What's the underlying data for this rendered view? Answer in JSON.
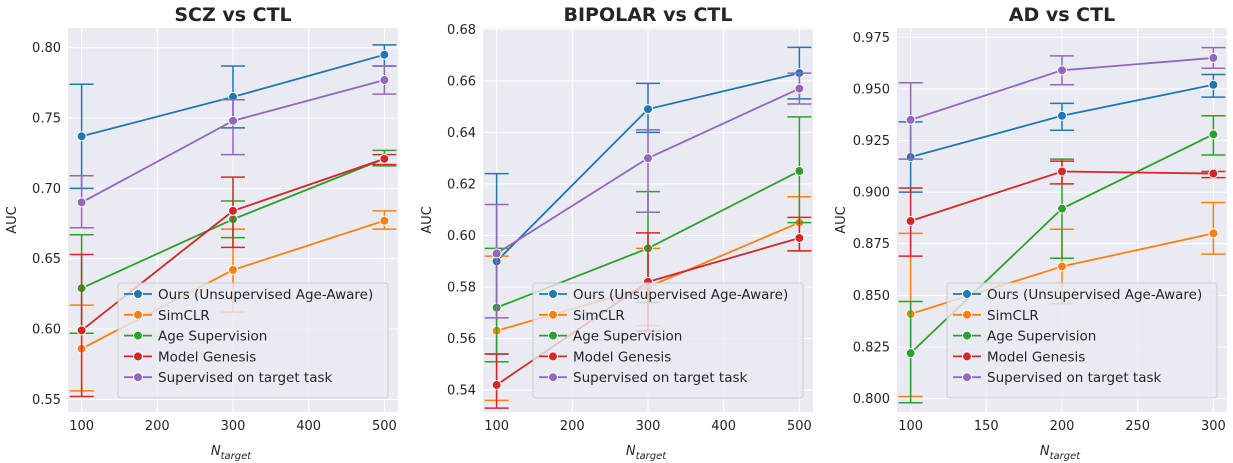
{
  "chart_data": [
    {
      "type": "line",
      "title": "SCZ vs CTL",
      "xlabel_main": "N",
      "xlabel_sub": "target",
      "ylabel": "AUC",
      "x": [
        100,
        300,
        500
      ],
      "xlim": [
        82,
        518
      ],
      "ylim": [
        0.541,
        0.814
      ],
      "xticks": [
        100,
        200,
        300,
        400,
        500
      ],
      "yticks": [
        0.55,
        0.6,
        0.65,
        0.7,
        0.75,
        0.8
      ],
      "ytick_decimals": 2,
      "xtick_labels": [
        "100",
        "200",
        "300",
        "400",
        "500"
      ],
      "ytick_labels": [
        "0.55",
        "0.60",
        "0.65",
        "0.70",
        "0.75",
        "0.80"
      ],
      "grid": true,
      "legend_position": "lower-right",
      "series": [
        {
          "name": "Ours (Unsupervised Age-Aware)",
          "color": "#1f77b4",
          "values": [
            0.737,
            0.765,
            0.795
          ],
          "err_low": [
            0.7,
            0.743,
            0.787
          ],
          "err_high": [
            0.774,
            0.787,
            0.802
          ]
        },
        {
          "name": "SimCLR",
          "color": "#ff7f0e",
          "values": [
            0.586,
            0.642,
            0.677
          ],
          "err_low": [
            0.556,
            0.612,
            0.671
          ],
          "err_high": [
            0.617,
            0.671,
            0.684
          ]
        },
        {
          "name": "Age Supervision",
          "color": "#2ca02c",
          "values": [
            0.629,
            0.678,
            0.721
          ],
          "err_low": [
            0.597,
            0.665,
            0.716
          ],
          "err_high": [
            0.667,
            0.691,
            0.727
          ]
        },
        {
          "name": "Model Genesis",
          "color": "#d62728",
          "values": [
            0.599,
            0.684,
            0.721
          ],
          "err_low": [
            0.552,
            0.658,
            0.717
          ],
          "err_high": [
            0.653,
            0.708,
            0.724
          ]
        },
        {
          "name": "Supervised on target task",
          "color": "#9467bd",
          "values": [
            0.69,
            0.748,
            0.777
          ],
          "err_low": [
            0.672,
            0.724,
            0.767
          ],
          "err_high": [
            0.709,
            0.763,
            0.787
          ]
        }
      ]
    },
    {
      "type": "line",
      "title": "BIPOLAR vs CTL",
      "xlabel_main": "N",
      "xlabel_sub": "target",
      "ylabel": "AUC",
      "x": [
        100,
        300,
        500
      ],
      "xlim": [
        82,
        518
      ],
      "ylim": [
        0.5315,
        0.6805
      ],
      "xticks": [
        100,
        200,
        300,
        400,
        500
      ],
      "yticks": [
        0.54,
        0.56,
        0.58,
        0.6,
        0.62,
        0.64,
        0.66,
        0.68
      ],
      "ytick_decimals": 2,
      "xtick_labels": [
        "100",
        "200",
        "300",
        "400",
        "500"
      ],
      "ytick_labels": [
        "0.54",
        "0.56",
        "0.58",
        "0.60",
        "0.62",
        "0.64",
        "0.66",
        "0.68"
      ],
      "grid": true,
      "legend_position": "lower-right",
      "series": [
        {
          "name": "Ours (Unsupervised Age-Aware)",
          "color": "#1f77b4",
          "values": [
            0.59,
            0.649,
            0.663
          ],
          "err_low": [
            0.554,
            0.64,
            0.653
          ],
          "err_high": [
            0.624,
            0.659,
            0.673
          ]
        },
        {
          "name": "SimCLR",
          "color": "#ff7f0e",
          "values": [
            0.563,
            0.58,
            0.605
          ],
          "err_low": [
            0.536,
            0.565,
            0.594
          ],
          "err_high": [
            0.592,
            0.595,
            0.615
          ]
        },
        {
          "name": "Age Supervision",
          "color": "#2ca02c",
          "values": [
            0.572,
            0.595,
            0.625
          ],
          "err_low": [
            0.551,
            0.574,
            0.605
          ],
          "err_high": [
            0.595,
            0.617,
            0.646
          ]
        },
        {
          "name": "Model Genesis",
          "color": "#d62728",
          "values": [
            0.542,
            0.582,
            0.599
          ],
          "err_low": [
            0.533,
            0.563,
            0.594
          ],
          "err_high": [
            0.554,
            0.601,
            0.607
          ]
        },
        {
          "name": "Supervised on target task",
          "color": "#9467bd",
          "values": [
            0.593,
            0.63,
            0.657
          ],
          "err_low": [
            0.568,
            0.609,
            0.651
          ],
          "err_high": [
            0.612,
            0.641,
            0.663
          ]
        }
      ]
    },
    {
      "type": "line",
      "title": "AD vs CTL",
      "xlabel_main": "N",
      "xlabel_sub": "target",
      "ylabel": "AUC",
      "x": [
        100,
        200,
        300
      ],
      "xlim": [
        91,
        309
      ],
      "ylim": [
        0.7935,
        0.9795
      ],
      "xticks": [
        100,
        150,
        200,
        250,
        300
      ],
      "yticks": [
        0.8,
        0.825,
        0.85,
        0.875,
        0.9,
        0.925,
        0.95,
        0.975
      ],
      "ytick_decimals": 3,
      "xtick_labels": [
        "100",
        "150",
        "200",
        "250",
        "300"
      ],
      "ytick_labels": [
        "0.800",
        "0.825",
        "0.850",
        "0.875",
        "0.900",
        "0.925",
        "0.950",
        "0.975"
      ],
      "grid": true,
      "legend_position": "lower-right",
      "series": [
        {
          "name": "Ours (Unsupervised Age-Aware)",
          "color": "#1f77b4",
          "values": [
            0.917,
            0.937,
            0.952
          ],
          "err_low": [
            0.9,
            0.93,
            0.946
          ],
          "err_high": [
            0.934,
            0.943,
            0.957
          ]
        },
        {
          "name": "SimCLR",
          "color": "#ff7f0e",
          "values": [
            0.841,
            0.864,
            0.88
          ],
          "err_low": [
            0.801,
            0.846,
            0.87
          ],
          "err_high": [
            0.88,
            0.882,
            0.895
          ]
        },
        {
          "name": "Age Supervision",
          "color": "#2ca02c",
          "values": [
            0.822,
            0.892,
            0.928
          ],
          "err_low": [
            0.798,
            0.868,
            0.918
          ],
          "err_high": [
            0.847,
            0.916,
            0.937
          ]
        },
        {
          "name": "Model Genesis",
          "color": "#d62728",
          "values": [
            0.886,
            0.91,
            0.909
          ],
          "err_low": [
            0.869,
            0.904,
            0.907
          ],
          "err_high": [
            0.902,
            0.915,
            0.91
          ]
        },
        {
          "name": "Supervised on target task",
          "color": "#9467bd",
          "values": [
            0.935,
            0.959,
            0.965
          ],
          "err_low": [
            0.916,
            0.952,
            0.96
          ],
          "err_high": [
            0.953,
            0.966,
            0.97
          ]
        }
      ]
    }
  ]
}
